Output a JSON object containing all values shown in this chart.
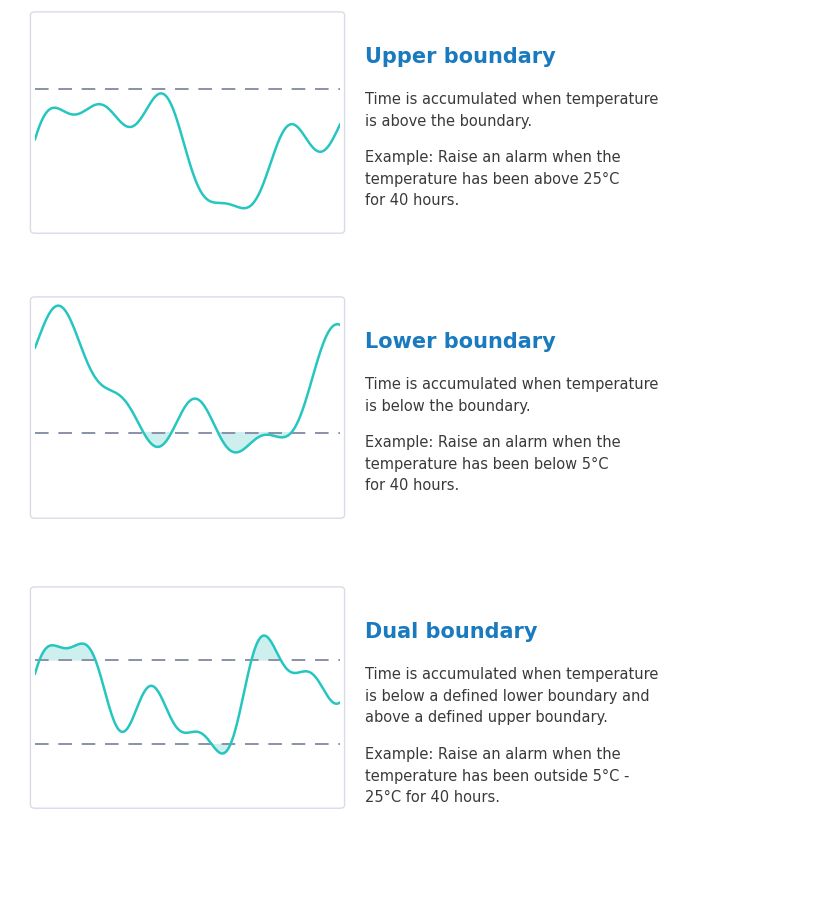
{
  "bg_color": "#ffffff",
  "card_bg": "#ffffff",
  "card_border": "#d8dce6",
  "curve_color": "#26c6c0",
  "fill_color": "#cdf0ee",
  "dashed_color": "#8a90a8",
  "title_color": "#1a7abf",
  "text_color": "#3a3a3a",
  "figure_width": 8.14,
  "figure_height": 8.97,
  "sections": [
    {
      "title": "Upper boundary",
      "desc1": "Time is accumulated when temperature\nis above the boundary.",
      "desc2": "Example: Raise an alarm when the\ntemperature has been above 25°C\nfor 40 hours.",
      "boundary_type": "upper"
    },
    {
      "title": "Lower boundary",
      "desc1": "Time is accumulated when temperature\nis below the boundary.",
      "desc2": "Example: Raise an alarm when the\ntemperature has been below 5°C\nfor 40 hours.",
      "boundary_type": "lower"
    },
    {
      "title": "Dual boundary",
      "desc1": "Time is accumulated when temperature\nis below a defined lower boundary and\nabove a defined upper boundary.",
      "desc2": "Example: Raise an alarm when the\ntemperature has been outside 5°C -\n25°C for 40 hours.",
      "boundary_type": "dual"
    }
  ]
}
